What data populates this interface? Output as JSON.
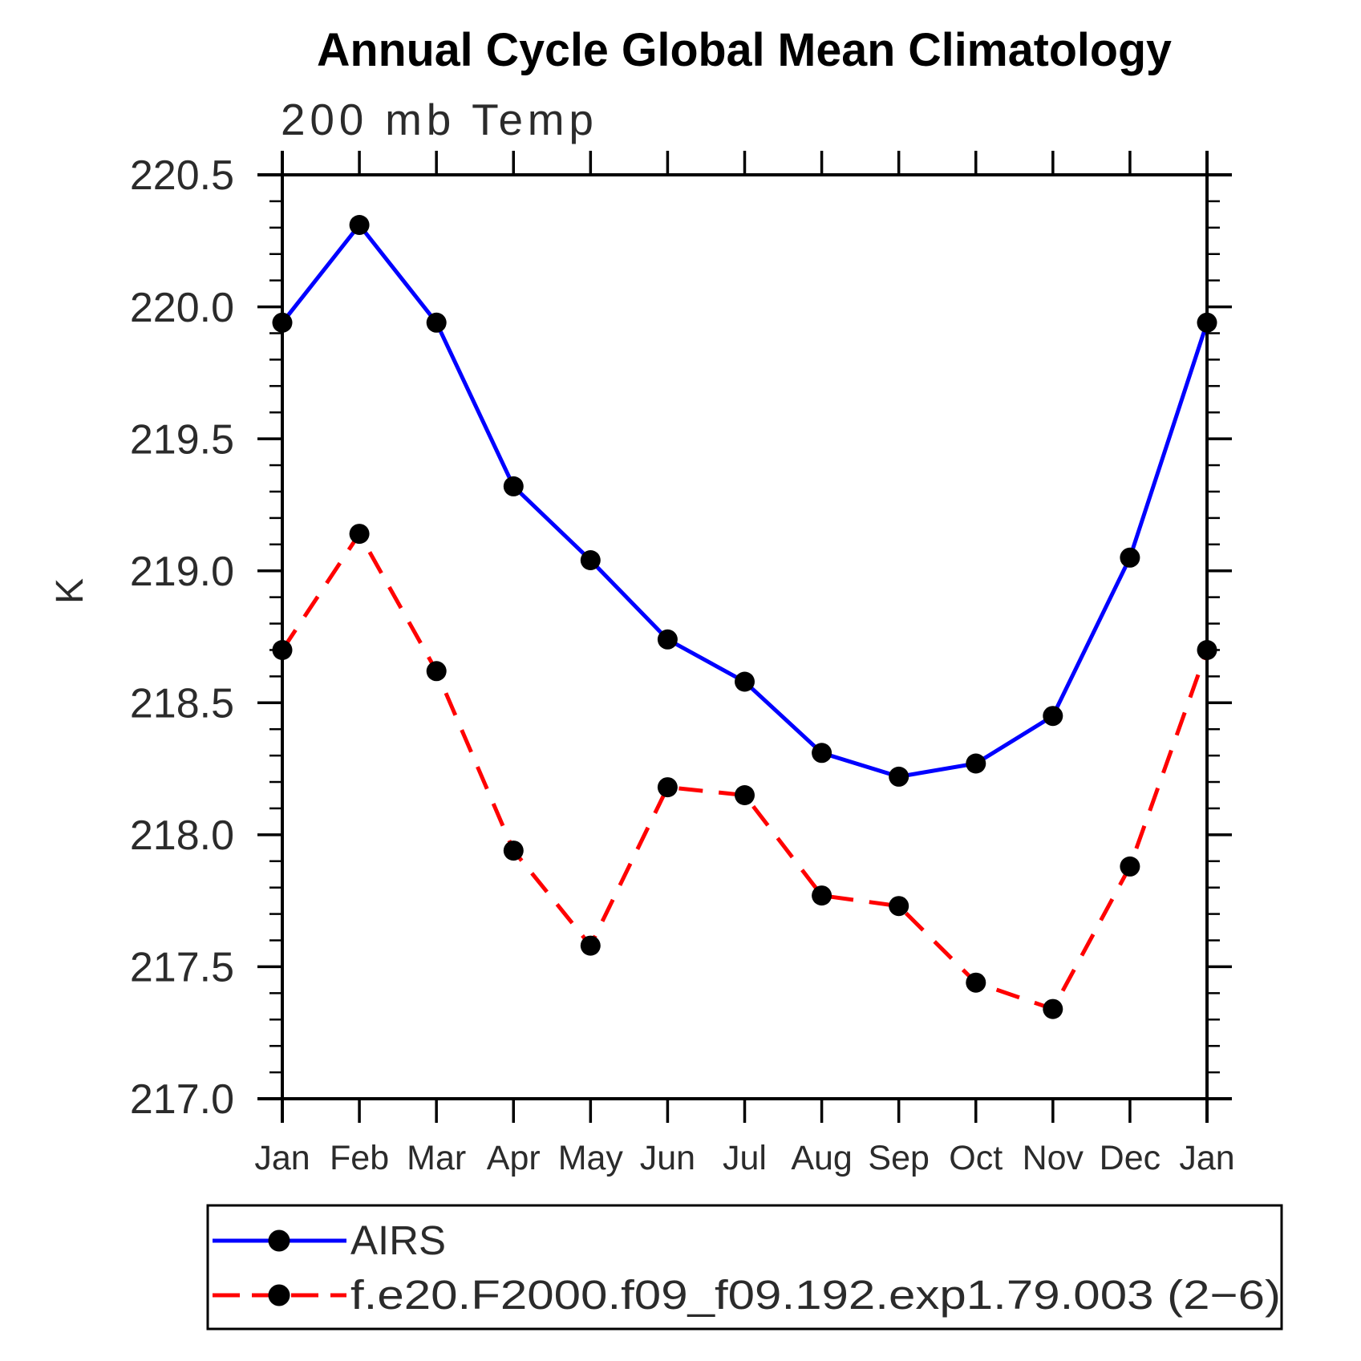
{
  "page": {
    "background": "#ffffff"
  },
  "chart_data": {
    "type": "line",
    "title": "Annual Cycle Global Mean Climatology",
    "subtitle": "200 mb Temp",
    "ylabel": "K",
    "xlabel": "",
    "ylim": [
      217.0,
      220.5
    ],
    "grid": false,
    "legend_position": "bottom",
    "x_categories": [
      "Jan",
      "Feb",
      "Mar",
      "Apr",
      "May",
      "Jun",
      "Jul",
      "Aug",
      "Sep",
      "Oct",
      "Nov",
      "Dec",
      "Jan"
    ],
    "y_tick_labels": [
      "220.5",
      "220.0",
      "219.5",
      "219.0",
      "218.5",
      "218.0",
      "217.5",
      "217.0"
    ],
    "y_tick_values": [
      220.5,
      220.0,
      219.5,
      219.0,
      218.5,
      218.0,
      217.5,
      217.0
    ],
    "y_minor_step": 0.1,
    "marker": "filled-circle",
    "marker_color": "#000000",
    "axis_color": "#000000",
    "text_color": "#2b2b2b",
    "series": [
      {
        "name": "AIRS",
        "color": "#0000ff",
        "line_style": "solid",
        "values": [
          219.94,
          220.31,
          219.94,
          219.32,
          219.04,
          218.74,
          218.58,
          218.31,
          218.22,
          218.27,
          218.45,
          219.05,
          219.94
        ]
      },
      {
        "name": "f.e20.F2000.f09_f09.192.exp1.79.003 (2−6)",
        "color": "#ff0000",
        "line_style": "dashed",
        "values": [
          218.7,
          219.14,
          218.62,
          217.94,
          217.58,
          218.18,
          218.15,
          217.77,
          217.73,
          217.44,
          217.34,
          217.88,
          218.7
        ]
      }
    ]
  }
}
